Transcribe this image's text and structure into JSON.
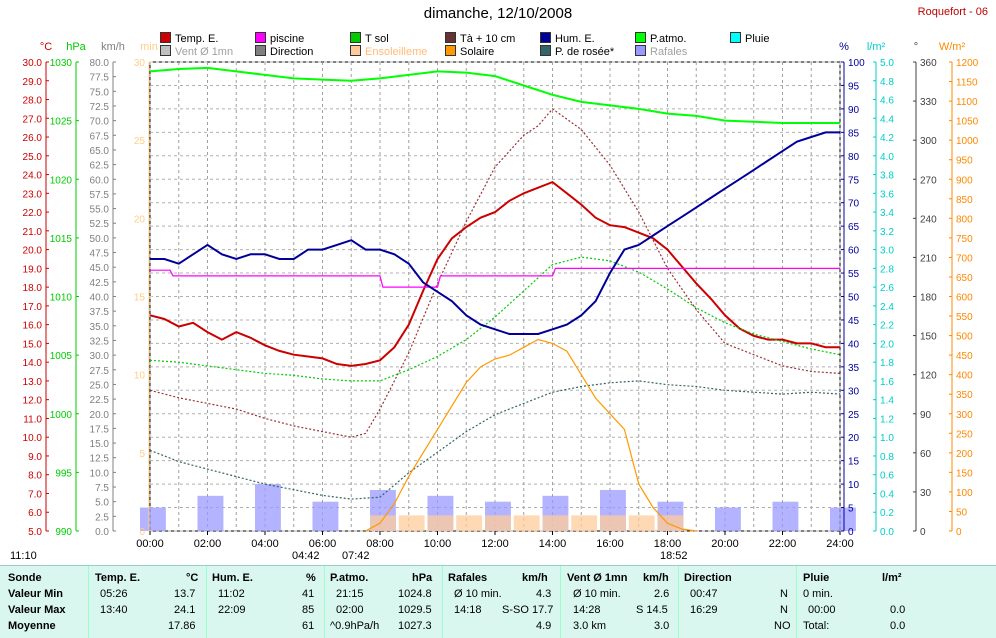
{
  "page": {
    "title": "dimanche, 12/10/2008",
    "station": "Roquefort - 06"
  },
  "legend": [
    {
      "label": "Temp. E.",
      "color": "#cc0000"
    },
    {
      "label": "piscine",
      "color": "#ff00ff"
    },
    {
      "label": "T sol",
      "color": "#00cc00"
    },
    {
      "label": "Tà + 10 cm",
      "color": "#663333"
    },
    {
      "label": "Hum. E.",
      "color": "#000099"
    },
    {
      "label": "P.atmo.",
      "color": "#00ff00"
    },
    {
      "label": "Pluie",
      "color": "#00ffff"
    },
    {
      "label": "Vent Ø 1mn",
      "color": "#c0c0c0"
    },
    {
      "label": "Direction",
      "color": "#808080"
    },
    {
      "label": "Ensoleilleme",
      "color": "#ffcc99"
    },
    {
      "label": "Solaire",
      "color": "#ff9900"
    },
    {
      "label": "P. de rosée*",
      "color": "#336666"
    },
    {
      "label": "Rafales",
      "color": "#9999ff"
    }
  ],
  "axis_units": {
    "temp": "°C",
    "press": "hPa",
    "wind": "km/h",
    "min": "min",
    "hum": "%",
    "rain": "l/m²",
    "dir": "°",
    "solar": "W/m²"
  },
  "x_ticks": [
    "00:00",
    "02:00",
    "04:00",
    "06:00",
    "08:00",
    "10:00",
    "12:00",
    "14:00",
    "16:00",
    "18:00",
    "20:00",
    "22:00",
    "24:00"
  ],
  "events": [
    {
      "label": "11:10",
      "pos": "left"
    },
    {
      "label": "04:42",
      "pos": "sunrise"
    },
    {
      "label": "07:42",
      "pos": "sun1"
    },
    {
      "label": "18:52",
      "pos": "sun2"
    }
  ],
  "chart_data": {
    "type": "line",
    "title": "dimanche, 12/10/2008",
    "x_unit": "hours",
    "xlim": [
      0,
      24
    ],
    "series": [
      {
        "name": "Temp. E.",
        "axis": "temp",
        "color": "#cc0000",
        "x": [
          0,
          0.5,
          1,
          1.5,
          2,
          2.5,
          3,
          3.5,
          4,
          4.5,
          5,
          5.5,
          6,
          6.5,
          7,
          7.5,
          8,
          8.5,
          9,
          9.5,
          10,
          10.5,
          11,
          11.5,
          12,
          12.5,
          13,
          13.5,
          14,
          14.5,
          15,
          15.5,
          16,
          16.5,
          17,
          17.5,
          18,
          18.5,
          19,
          19.5,
          20,
          20.5,
          21,
          21.5,
          22,
          22.5,
          23,
          23.5,
          24
        ],
        "y": [
          16.5,
          16.3,
          15.9,
          16.1,
          15.6,
          15.2,
          15.6,
          15.3,
          14.9,
          14.6,
          14.4,
          14.3,
          14.2,
          13.9,
          13.8,
          13.9,
          14.1,
          14.8,
          16.0,
          17.8,
          19.5,
          20.6,
          21.2,
          21.7,
          22.0,
          22.6,
          23.0,
          23.3,
          23.6,
          23.0,
          22.4,
          21.7,
          21.3,
          21.2,
          20.9,
          20.6,
          20.0,
          19.1,
          18.2,
          17.4,
          16.5,
          15.8,
          15.4,
          15.2,
          15.2,
          15.0,
          15.0,
          14.8,
          14.8
        ]
      },
      {
        "name": "Tà + 10 cm",
        "axis": "temp",
        "color": "#993333",
        "x": [
          0,
          1,
          2,
          3,
          4,
          5,
          6,
          7,
          7.5,
          8,
          9,
          10,
          11,
          12,
          13,
          13.5,
          14,
          15,
          16,
          17,
          18,
          19,
          20,
          21,
          22,
          23,
          24
        ],
        "y": [
          12.5,
          12.1,
          11.8,
          11.5,
          11.0,
          10.6,
          10.3,
          10.0,
          10.2,
          11.5,
          14.5,
          18.2,
          21.5,
          24.4,
          26.1,
          26.6,
          27.5,
          26.4,
          24.5,
          22.0,
          19.0,
          16.8,
          15.0,
          14.4,
          13.8,
          13.5,
          13.4
        ]
      },
      {
        "name": "T sol",
        "axis": "temp",
        "color": "#00cc00",
        "x": [
          0,
          1,
          2,
          3,
          4,
          5,
          6,
          7,
          8,
          9,
          10,
          11,
          12,
          13,
          14,
          15,
          16,
          17,
          18,
          19,
          20,
          21,
          22,
          23,
          24
        ],
        "y": [
          14.1,
          14.0,
          13.8,
          13.6,
          13.4,
          13.3,
          13.1,
          13.0,
          13.0,
          13.6,
          14.3,
          15.2,
          16.4,
          17.8,
          19.2,
          19.6,
          19.4,
          18.8,
          17.9,
          16.9,
          16.1,
          15.5,
          15.1,
          14.7,
          14.4
        ]
      },
      {
        "name": "P. de rosée*",
        "axis": "temp",
        "color": "#336666",
        "x": [
          0,
          1,
          2,
          3,
          4,
          5,
          6,
          7,
          8,
          9,
          10,
          11,
          12,
          13,
          14,
          15,
          16,
          17,
          18,
          19,
          20,
          21,
          22,
          23,
          24
        ],
        "y": [
          9.3,
          8.7,
          8.3,
          7.9,
          7.5,
          7.2,
          6.9,
          6.7,
          6.8,
          8.1,
          9.2,
          10.3,
          11.2,
          11.8,
          12.4,
          12.7,
          12.9,
          13.0,
          12.8,
          12.7,
          12.5,
          12.4,
          12.3,
          12.4,
          12.3
        ]
      },
      {
        "name": "piscine",
        "axis": "temp",
        "color": "#ff00ff",
        "x": [
          0,
          0.7,
          0.8,
          8,
          8.1,
          10,
          10.1,
          14,
          14.1,
          24
        ],
        "y": [
          18.9,
          18.9,
          18.6,
          18.6,
          18.0,
          18.0,
          18.6,
          18.6,
          19.0,
          19.0
        ]
      },
      {
        "name": "Hum. E.",
        "axis": "hum",
        "color": "#000099",
        "x": [
          0,
          0.5,
          1,
          1.5,
          2,
          2.5,
          3,
          3.5,
          4,
          4.5,
          5,
          5.5,
          6,
          6.5,
          7,
          7.5,
          8,
          8.5,
          9,
          9.5,
          10,
          10.5,
          11,
          11.5,
          12,
          12.5,
          13,
          13.5,
          14,
          14.5,
          15,
          15.5,
          16,
          16.5,
          17,
          17.5,
          18,
          18.5,
          19,
          19.5,
          20,
          20.5,
          21,
          21.5,
          22,
          22.5,
          23,
          23.5,
          24
        ],
        "y": [
          58,
          58,
          57,
          59,
          61,
          59,
          58,
          59,
          59,
          58,
          58,
          60,
          60,
          61,
          62,
          60,
          60,
          59,
          57,
          53,
          51,
          49,
          46,
          44,
          43,
          42,
          42,
          42,
          43,
          44,
          46,
          49,
          55,
          60,
          61,
          63,
          65,
          67,
          69,
          71,
          73,
          75,
          77,
          79,
          81,
          83,
          84,
          85,
          85
        ]
      },
      {
        "name": "P.atmo.",
        "axis": "press",
        "color": "#00ff00",
        "x": [
          0,
          1,
          2,
          3,
          4,
          5,
          6,
          7,
          8,
          9,
          10,
          11,
          12,
          13,
          14,
          15,
          16,
          17,
          18,
          19,
          20,
          21,
          22,
          23,
          24
        ],
        "y": [
          1029.2,
          1029.4,
          1029.5,
          1029.2,
          1028.9,
          1028.6,
          1028.5,
          1028.4,
          1028.6,
          1028.9,
          1029.2,
          1029.1,
          1028.8,
          1028.0,
          1027.2,
          1026.6,
          1026.3,
          1026.0,
          1025.6,
          1025.4,
          1025.0,
          1024.9,
          1024.8,
          1024.8,
          1024.8
        ]
      },
      {
        "name": "Solaire",
        "axis": "solar",
        "color": "#ff9900",
        "x": [
          7.5,
          8,
          8.5,
          9,
          9.5,
          10,
          10.5,
          11,
          11.5,
          12,
          12.5,
          13,
          13.5,
          14,
          14.5,
          15,
          15.5,
          16,
          16.5,
          17,
          17.5,
          18,
          18.5,
          19
        ],
        "y": [
          0,
          20,
          70,
          140,
          200,
          260,
          320,
          380,
          420,
          440,
          450,
          470,
          490,
          480,
          460,
          400,
          340,
          300,
          260,
          120,
          60,
          20,
          5,
          0
        ]
      }
    ],
    "bars": [
      {
        "name": "Rafales",
        "axis": "wind",
        "color": "#9999ff",
        "hours": [
          0,
          2,
          4,
          6,
          8,
          10,
          12,
          14,
          16,
          18,
          20,
          22,
          24
        ],
        "values": [
          4,
          6,
          8,
          5,
          7,
          6,
          5,
          6,
          7,
          5,
          4,
          5,
          4
        ]
      },
      {
        "name": "Ensoleilleme",
        "axis": "min",
        "color": "#ffcc99",
        "hours": [
          8,
          9,
          10,
          11,
          12,
          13,
          14,
          15,
          16,
          17,
          18
        ],
        "values": [
          1,
          1,
          1,
          1,
          1,
          1,
          1,
          1,
          1,
          1,
          1
        ]
      }
    ],
    "axes": {
      "temp": {
        "min": 5.0,
        "max": 30.0,
        "step": 0.5,
        "label_every": 1.0,
        "unit": "°C"
      },
      "press": {
        "min": 990,
        "max": 1030,
        "step": 5,
        "unit": "hPa"
      },
      "wind": {
        "min": 0.0,
        "max": 80.0,
        "step": 2.5,
        "unit": "km/h"
      },
      "min": {
        "min": 0,
        "max": 30,
        "step": 5,
        "unit": "min"
      },
      "hum": {
        "min": 0,
        "max": 100,
        "step": 5,
        "unit": "%"
      },
      "rain": {
        "min": 0.0,
        "max": 5.0,
        "step": 0.2,
        "unit": "l/m²"
      },
      "dir": {
        "min": 0,
        "max": 360,
        "step": 30,
        "unit": "°"
      },
      "solar": {
        "min": 0,
        "max": 1200,
        "step": 50,
        "unit": "W/m²"
      }
    },
    "grid": true
  },
  "summary": {
    "headers": [
      "Sonde",
      "Temp. E.",
      "°C",
      "Hum. E.",
      "%",
      "P.atmo.",
      "hPa",
      "Rafales",
      "km/h",
      "Vent Ø 1mn",
      "km/h",
      "Direction",
      "",
      "Pluie",
      "l/m²"
    ],
    "rows": [
      {
        "label": "Valeur Min",
        "temp_t": "05:26",
        "temp_v": "13.7",
        "hum_t": "11:02",
        "hum_v": "41",
        "p_t": "21:15",
        "p_v": "1024.8",
        "raf_t": "Ø 10 min.",
        "raf_v": "4.3",
        "vent_t": "Ø 10 min.",
        "vent_v": "2.6",
        "dir_t": "00:47",
        "dir_v": "N",
        "pl_t": "0 min.",
        "pl_v": ""
      },
      {
        "label": "Valeur Max",
        "temp_t": "13:40",
        "temp_v": "24.1",
        "hum_t": "22:09",
        "hum_v": "85",
        "p_t": "02:00",
        "p_v": "1029.5",
        "raf_t": "14:18",
        "raf_v": "S-SO 17.7",
        "vent_t": "14:28",
        "vent_v": "S 14.5",
        "dir_t": "16:29",
        "dir_v": "N",
        "pl_t": "00:00",
        "pl_v": "0.0"
      },
      {
        "label": "Moyenne",
        "temp_t": "",
        "temp_v": "17.86",
        "hum_t": "",
        "hum_v": "61",
        "p_t": "^0.9hPa/h",
        "p_v": "1027.3",
        "raf_t": "",
        "raf_v": "4.9",
        "vent_t": "3.0 km",
        "vent_v": "3.0",
        "dir_t": "",
        "dir_v": "NO",
        "pl_t": "Total:",
        "pl_v": "0.0"
      }
    ]
  }
}
